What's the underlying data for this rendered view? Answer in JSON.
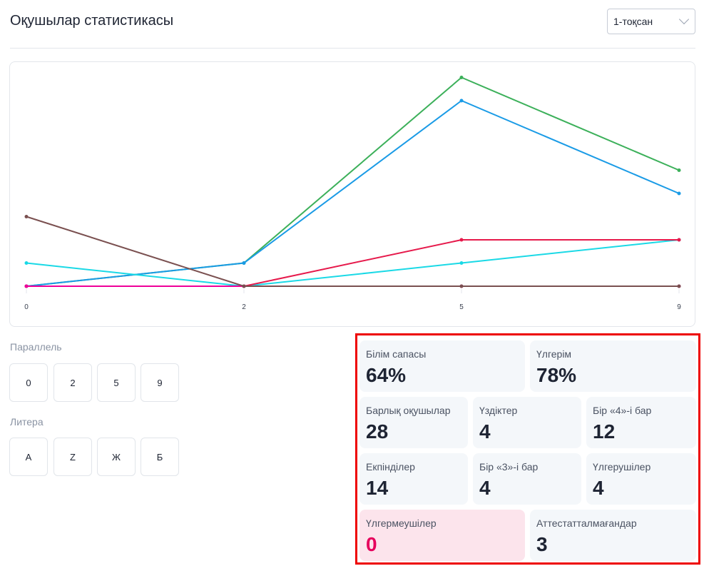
{
  "header": {
    "title": "Оқушылар статистикасы",
    "quarter_select": "1-тоқсан"
  },
  "chart_data": {
    "type": "line",
    "categories": [
      "0",
      "2",
      "5",
      "9"
    ],
    "ylim": [
      0,
      10
    ],
    "grid": false,
    "series": [
      {
        "name": "green",
        "color": "#3cb05a",
        "values": [
          0,
          1,
          9,
          5
        ]
      },
      {
        "name": "blue",
        "color": "#1a9be6",
        "values": [
          0,
          1,
          8,
          4
        ]
      },
      {
        "name": "cyan",
        "color": "#1ad9e6",
        "values": [
          1,
          0,
          1,
          2
        ]
      },
      {
        "name": "red",
        "color": "#e6194b",
        "values": [
          0,
          0,
          2,
          2
        ]
      },
      {
        "name": "magenta",
        "color": "#ee0099",
        "values": [
          0,
          0,
          0,
          0
        ]
      },
      {
        "name": "brown",
        "color": "#7a5050",
        "values": [
          3,
          0,
          0,
          0
        ]
      }
    ]
  },
  "filters": {
    "parallel_label": "Параллель",
    "parallel": [
      "0",
      "2",
      "5",
      "9"
    ],
    "litera_label": "Литера",
    "litera": [
      "А",
      "Z",
      "Ж",
      "Б"
    ]
  },
  "stats": [
    {
      "label": "Білім сапасы",
      "value": "64%"
    },
    {
      "label": "Үлгерім",
      "value": "78%"
    },
    {
      "label": "Барлық оқушылар",
      "value": "28"
    },
    {
      "label": "Үздіктер",
      "value": "4"
    },
    {
      "label": "Бір «4»-і бар",
      "value": "12"
    },
    {
      "label": "Екпінділер",
      "value": "14"
    },
    {
      "label": "Бір «3»-і бар",
      "value": "4"
    },
    {
      "label": "Үлгерушілер",
      "value": "4"
    },
    {
      "label": "Үлгермеушілер",
      "value": "0"
    },
    {
      "label": "Аттестатталмағандар",
      "value": "3"
    }
  ]
}
